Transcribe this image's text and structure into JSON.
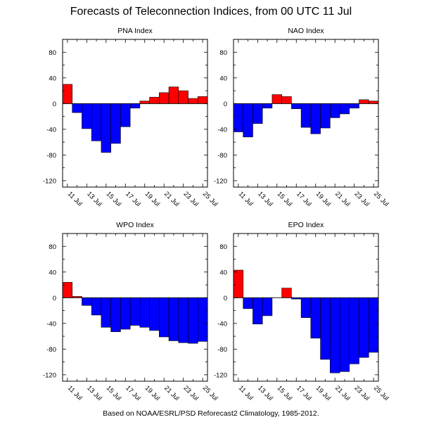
{
  "title": "Forecasts of Teleconnection Indices, from 00 UTC 11 Jul",
  "footer": "Based on NOAA/ESRL/PSD Reforecast2 Climatology, 1985-2012.",
  "colors": {
    "positive": "#ff0000",
    "negative": "#0000ff",
    "edge": "#000000"
  },
  "chart_data": [
    {
      "type": "bar",
      "title": "PNA Index",
      "categories": [
        "11 Jul",
        "12 Jul",
        "13 Jul",
        "14 Jul",
        "15 Jul",
        "16 Jul",
        "17 Jul",
        "18 Jul",
        "19 Jul",
        "20 Jul",
        "21 Jul",
        "22 Jul",
        "23 Jul",
        "24 Jul",
        "25 Jul"
      ],
      "tick_labels": [
        "11 Jul",
        "13 Jul",
        "15 Jul",
        "17 Jul",
        "19 Jul",
        "21 Jul",
        "23 Jul",
        "25 Jul"
      ],
      "values": [
        30,
        -14,
        -39,
        -58,
        -76,
        -62,
        -36,
        -7,
        4,
        10,
        17,
        26,
        20,
        8,
        11
      ],
      "ylim": [
        -130,
        100
      ],
      "yticks": [
        -120,
        -80,
        -40,
        0,
        40,
        80
      ]
    },
    {
      "type": "bar",
      "title": "NAO Index",
      "categories": [
        "11 Jul",
        "12 Jul",
        "13 Jul",
        "14 Jul",
        "15 Jul",
        "16 Jul",
        "17 Jul",
        "18 Jul",
        "19 Jul",
        "20 Jul",
        "21 Jul",
        "22 Jul",
        "23 Jul",
        "24 Jul",
        "25 Jul"
      ],
      "tick_labels": [
        "11 Jul",
        "13 Jul",
        "15 Jul",
        "17 Jul",
        "19 Jul",
        "21 Jul",
        "23 Jul",
        "25 Jul"
      ],
      "values": [
        -44,
        -52,
        -31,
        -7,
        14,
        11,
        -8,
        -37,
        -47,
        -38,
        -22,
        -16,
        -7,
        6,
        4
      ],
      "ylim": [
        -130,
        100
      ],
      "yticks": [
        -120,
        -80,
        -40,
        0,
        40,
        80
      ]
    },
    {
      "type": "bar",
      "title": "WPO Index",
      "categories": [
        "11 Jul",
        "12 Jul",
        "13 Jul",
        "14 Jul",
        "15 Jul",
        "16 Jul",
        "17 Jul",
        "18 Jul",
        "19 Jul",
        "20 Jul",
        "21 Jul",
        "22 Jul",
        "23 Jul",
        "24 Jul",
        "25 Jul"
      ],
      "tick_labels": [
        "11 Jul",
        "13 Jul",
        "15 Jul",
        "17 Jul",
        "19 Jul",
        "21 Jul",
        "23 Jul",
        "25 Jul"
      ],
      "values": [
        24,
        2,
        -12,
        -27,
        -46,
        -53,
        -49,
        -43,
        -46,
        -51,
        -61,
        -67,
        -70,
        -71,
        -68
      ],
      "ylim": [
        -130,
        100
      ],
      "yticks": [
        -120,
        -80,
        -40,
        0,
        40,
        80
      ]
    },
    {
      "type": "bar",
      "title": "EPO Index",
      "categories": [
        "11 Jul",
        "12 Jul",
        "13 Jul",
        "14 Jul",
        "15 Jul",
        "16 Jul",
        "17 Jul",
        "18 Jul",
        "19 Jul",
        "20 Jul",
        "21 Jul",
        "22 Jul",
        "23 Jul",
        "24 Jul",
        "25 Jul"
      ],
      "tick_labels": [
        "11 Jul",
        "13 Jul",
        "15 Jul",
        "17 Jul",
        "19 Jul",
        "21 Jul",
        "23 Jul",
        "25 Jul"
      ],
      "values": [
        43,
        -17,
        -41,
        -28,
        0,
        15,
        -2,
        -31,
        -63,
        -96,
        -117,
        -115,
        -103,
        -93,
        -85
      ],
      "ylim": [
        -130,
        100
      ],
      "yticks": [
        -120,
        -80,
        -40,
        0,
        40,
        80
      ]
    }
  ]
}
